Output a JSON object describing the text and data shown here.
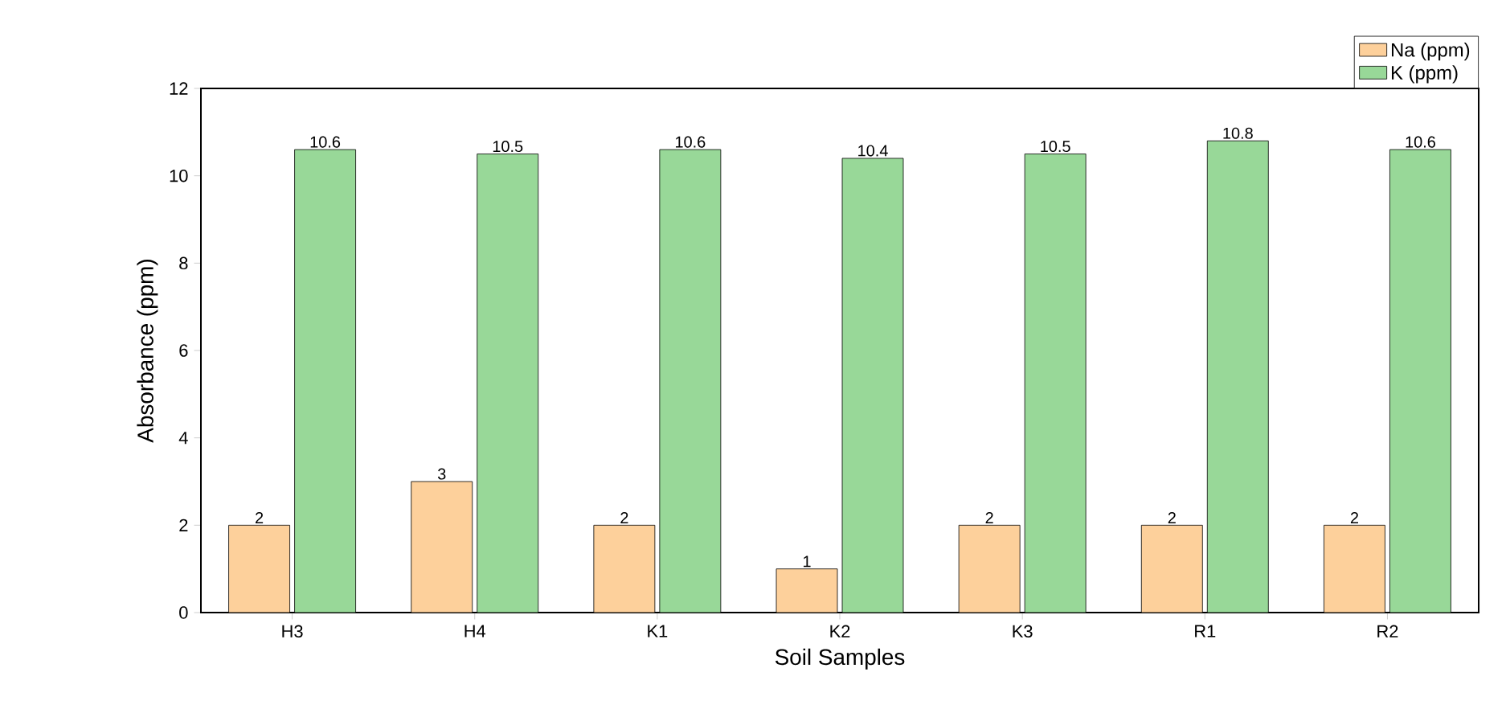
{
  "chart_data": {
    "type": "bar",
    "xlabel": "Soil Samples",
    "ylabel": "Absorbance (ppm)",
    "categories": [
      "H3",
      "H4",
      "K1",
      "K2",
      "K3",
      "R1",
      "R2"
    ],
    "series": [
      {
        "name": "Na (ppm)",
        "color": "#fdd09b",
        "values": [
          2,
          3,
          2,
          1,
          2,
          2,
          2
        ]
      },
      {
        "name": "K    (ppm)",
        "color": "#98d898",
        "values": [
          10.6,
          10.5,
          10.6,
          10.4,
          10.5,
          10.8,
          10.6
        ]
      }
    ],
    "ylim": [
      0,
      12
    ],
    "yticks": [
      0,
      2,
      4,
      6,
      8,
      10,
      12
    ],
    "data_labels": true,
    "legend": "top right",
    "grid": false
  }
}
